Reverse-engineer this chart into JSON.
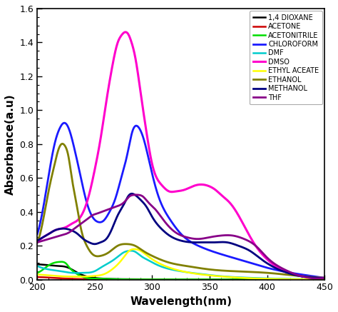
{
  "title": "",
  "xlabel": "Wavelength(nm)",
  "ylabel": "Absorbance(a.u)",
  "xlim": [
    200,
    450
  ],
  "ylim": [
    0,
    1.6
  ],
  "xticks": [
    200,
    250,
    300,
    350,
    400,
    450
  ],
  "yticks": [
    0.0,
    0.2,
    0.4,
    0.6,
    0.8,
    1.0,
    1.2,
    1.4,
    1.6
  ],
  "background_color": "#ffffff",
  "solvents": {
    "1,4 DIOXANE": {
      "color": "#000000",
      "lw": 1.8,
      "points_x": [
        200,
        210,
        215,
        220,
        225,
        230,
        235,
        240,
        250,
        260,
        270,
        290,
        310,
        350,
        400,
        450
      ],
      "points_y": [
        0.09,
        0.085,
        0.082,
        0.08,
        0.075,
        0.06,
        0.04,
        0.025,
        0.01,
        0.005,
        0.003,
        0.002,
        0.001,
        0.001,
        0.001,
        0.001
      ]
    },
    "ACETONE": {
      "color": "#cc0000",
      "lw": 1.8,
      "points_x": [
        200,
        210,
        220,
        230,
        240,
        250,
        270,
        290,
        310,
        350,
        400,
        450
      ],
      "points_y": [
        0.015,
        0.012,
        0.008,
        0.005,
        0.003,
        0.002,
        0.001,
        0.001,
        0.001,
        0.0,
        0.0,
        0.0
      ]
    },
    "ACETONITRILE": {
      "color": "#00dd00",
      "lw": 1.8,
      "points_x": [
        200,
        205,
        210,
        215,
        220,
        225,
        228,
        232,
        240,
        250,
        270,
        290,
        320,
        380,
        450
      ],
      "points_y": [
        0.04,
        0.06,
        0.085,
        0.1,
        0.105,
        0.095,
        0.07,
        0.045,
        0.015,
        0.006,
        0.002,
        0.001,
        0.001,
        0.001,
        0.001
      ]
    },
    "CHLOROFORM": {
      "color": "#1a1aff",
      "lw": 2.0,
      "points_x": [
        200,
        205,
        210,
        215,
        220,
        222,
        225,
        228,
        232,
        237,
        242,
        248,
        253,
        258,
        262,
        268,
        273,
        278,
        283,
        288,
        293,
        298,
        305,
        315,
        325,
        340,
        360,
        380,
        400,
        430,
        450
      ],
      "points_y": [
        0.27,
        0.42,
        0.62,
        0.8,
        0.9,
        0.92,
        0.92,
        0.88,
        0.78,
        0.63,
        0.48,
        0.37,
        0.34,
        0.35,
        0.39,
        0.48,
        0.6,
        0.73,
        0.88,
        0.9,
        0.82,
        0.68,
        0.5,
        0.36,
        0.27,
        0.2,
        0.15,
        0.11,
        0.07,
        0.03,
        0.01
      ]
    },
    "DMF": {
      "color": "#00cccc",
      "lw": 1.8,
      "points_x": [
        200,
        210,
        220,
        230,
        240,
        250,
        255,
        260,
        265,
        270,
        275,
        280,
        285,
        290,
        295,
        305,
        320,
        340,
        360,
        380,
        400,
        430,
        450
      ],
      "points_y": [
        0.08,
        0.06,
        0.05,
        0.04,
        0.04,
        0.05,
        0.07,
        0.09,
        0.11,
        0.135,
        0.16,
        0.17,
        0.165,
        0.14,
        0.12,
        0.085,
        0.055,
        0.035,
        0.02,
        0.012,
        0.007,
        0.003,
        0.002
      ]
    },
    "DMSO": {
      "color": "#ff00cc",
      "lw": 2.2,
      "points_x": [
        200,
        205,
        210,
        215,
        220,
        225,
        230,
        235,
        240,
        245,
        250,
        255,
        260,
        265,
        270,
        273,
        276,
        279,
        282,
        285,
        290,
        295,
        300,
        308,
        315,
        320,
        328,
        335,
        340,
        345,
        350,
        355,
        360,
        368,
        375,
        383,
        390,
        400,
        415,
        430,
        450
      ],
      "points_y": [
        0.22,
        0.25,
        0.27,
        0.29,
        0.3,
        0.31,
        0.33,
        0.35,
        0.4,
        0.5,
        0.65,
        0.83,
        1.05,
        1.25,
        1.4,
        1.44,
        1.46,
        1.45,
        1.4,
        1.32,
        1.1,
        0.87,
        0.68,
        0.56,
        0.52,
        0.52,
        0.53,
        0.55,
        0.56,
        0.56,
        0.55,
        0.53,
        0.5,
        0.45,
        0.38,
        0.28,
        0.2,
        0.12,
        0.05,
        0.02,
        0.01
      ]
    },
    "ETHYL ACEATE": {
      "color": "#ffff00",
      "lw": 1.8,
      "points_x": [
        200,
        210,
        220,
        230,
        240,
        250,
        258,
        265,
        270,
        275,
        280,
        285,
        290,
        295,
        305,
        320,
        350,
        400,
        450
      ],
      "points_y": [
        0.03,
        0.025,
        0.02,
        0.018,
        0.018,
        0.022,
        0.032,
        0.06,
        0.09,
        0.13,
        0.17,
        0.18,
        0.17,
        0.145,
        0.1,
        0.06,
        0.025,
        0.005,
        0.002
      ]
    },
    "ETHANOL": {
      "color": "#808000",
      "lw": 2.0,
      "points_x": [
        200,
        205,
        210,
        215,
        218,
        221,
        224,
        227,
        230,
        234,
        238,
        243,
        248,
        255,
        262,
        270,
        278,
        285,
        292,
        300,
        315,
        330,
        350,
        370,
        400,
        430,
        450
      ],
      "points_y": [
        0.22,
        0.35,
        0.53,
        0.68,
        0.76,
        0.8,
        0.79,
        0.73,
        0.6,
        0.45,
        0.3,
        0.2,
        0.15,
        0.14,
        0.16,
        0.2,
        0.21,
        0.2,
        0.17,
        0.14,
        0.1,
        0.08,
        0.06,
        0.05,
        0.04,
        0.02,
        0.01
      ]
    },
    "METHANOL": {
      "color": "#000080",
      "lw": 2.0,
      "points_x": [
        200,
        205,
        210,
        215,
        220,
        225,
        230,
        235,
        240,
        245,
        250,
        255,
        260,
        265,
        270,
        275,
        280,
        285,
        290,
        295,
        300,
        308,
        315,
        325,
        335,
        345,
        355,
        365,
        375,
        385,
        395,
        410,
        430,
        450
      ],
      "points_y": [
        0.23,
        0.25,
        0.27,
        0.29,
        0.3,
        0.3,
        0.29,
        0.27,
        0.24,
        0.22,
        0.21,
        0.22,
        0.24,
        0.3,
        0.38,
        0.44,
        0.5,
        0.5,
        0.47,
        0.43,
        0.37,
        0.3,
        0.26,
        0.23,
        0.22,
        0.22,
        0.22,
        0.22,
        0.2,
        0.17,
        0.12,
        0.06,
        0.02,
        0.01
      ]
    },
    "THF": {
      "color": "#880088",
      "lw": 2.0,
      "points_x": [
        200,
        205,
        210,
        215,
        220,
        225,
        228,
        232,
        236,
        240,
        244,
        248,
        252,
        256,
        260,
        264,
        268,
        272,
        276,
        280,
        284,
        288,
        292,
        296,
        302,
        310,
        320,
        330,
        340,
        350,
        360,
        370,
        380,
        390,
        400,
        415,
        430,
        450
      ],
      "points_y": [
        0.22,
        0.23,
        0.24,
        0.25,
        0.26,
        0.27,
        0.28,
        0.3,
        0.32,
        0.34,
        0.36,
        0.38,
        0.39,
        0.4,
        0.41,
        0.42,
        0.43,
        0.44,
        0.46,
        0.49,
        0.5,
        0.5,
        0.49,
        0.46,
        0.42,
        0.35,
        0.28,
        0.25,
        0.24,
        0.25,
        0.26,
        0.26,
        0.24,
        0.2,
        0.13,
        0.06,
        0.02,
        0.01
      ]
    }
  },
  "legend_order": [
    "1,4 DIOXANE",
    "ACETONE",
    "ACETONITRILE",
    "CHLOROFORM",
    "DMF",
    "DMSO",
    "ETHYL ACEATE",
    "ETHANOL",
    "METHANOL",
    "THF"
  ],
  "figsize": [
    4.74,
    4.37
  ],
  "dpi": 100
}
